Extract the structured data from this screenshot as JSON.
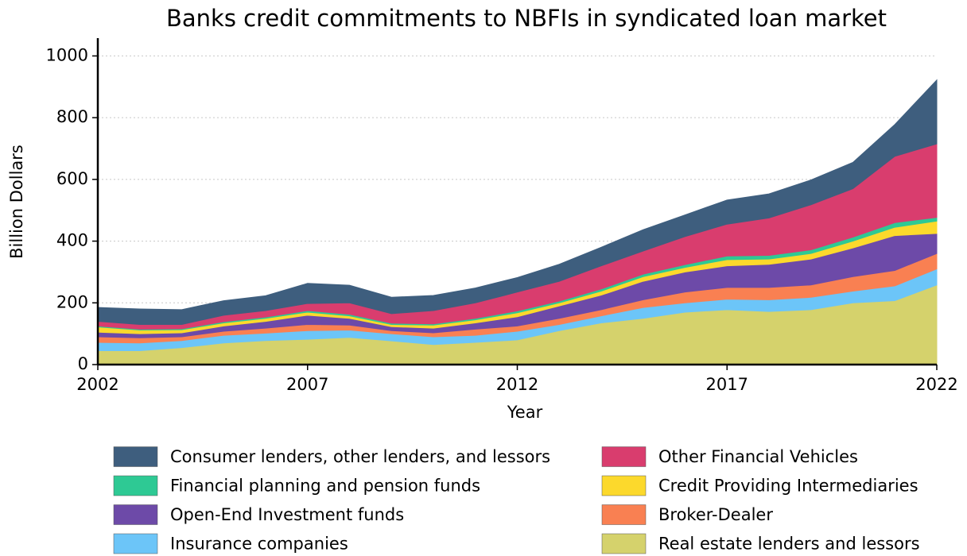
{
  "chart_data": {
    "type": "stacked_area",
    "title": "Banks credit commitments to NBFIs in syndicated loan market",
    "x_label": "Year",
    "y_label": "Billion Dollars",
    "x": [
      2002,
      2003,
      2004,
      2005,
      2006,
      2007,
      2008,
      2009,
      2010,
      2011,
      2012,
      2013,
      2014,
      2015,
      2016,
      2017,
      2018,
      2019,
      2020,
      2021,
      2022
    ],
    "xlim": [
      2002,
      2022
    ],
    "xticks": [
      2002,
      2007,
      2012,
      2017,
      2022
    ],
    "ylim": [
      0,
      1050
    ],
    "yticks": [
      0,
      200,
      400,
      600,
      800,
      1000
    ],
    "grid": true,
    "series": [
      {
        "name": "Consumer lenders, other lenders, and lessors",
        "color": "#3e5e7e",
        "values": [
          45,
          50,
          48,
          47,
          48,
          65,
          57,
          53,
          49,
          48,
          47,
          55,
          60,
          69,
          70,
          78,
          78,
          80,
          85,
          103,
          207
        ]
      },
      {
        "name": "Other Financial Vehicles",
        "color": "#d93d6e",
        "values": [
          15,
          15,
          14,
          21,
          21,
          23,
          37,
          31,
          43,
          50,
          61,
          64,
          75,
          75,
          91,
          103,
          121,
          146,
          157,
          215,
          238
        ]
      },
      {
        "name": "Financial planning and pension funds",
        "color": "#2ec994",
        "values": [
          3,
          3,
          3,
          4,
          4,
          5,
          5,
          4,
          4,
          5,
          6,
          6,
          7,
          8,
          9,
          12,
          12,
          12,
          13,
          15,
          12
        ]
      },
      {
        "name": "Credit Providing Intermediaries",
        "color": "#fcd92c",
        "values": [
          17,
          12,
          10,
          10,
          10,
          10,
          8,
          7,
          10,
          10,
          13,
          10,
          13,
          15,
          15,
          20,
          17,
          18,
          22,
          27,
          40
        ]
      },
      {
        "name": "Open-End Investment funds",
        "color": "#6d4aa8",
        "values": [
          15,
          13,
          13,
          17,
          22,
          30,
          22,
          13,
          15,
          20,
          30,
          40,
          47,
          60,
          65,
          70,
          75,
          84,
          93,
          113,
          65
        ]
      },
      {
        "name": "Broker-Dealer",
        "color": "#f98052",
        "values": [
          18,
          17,
          12,
          13,
          16,
          20,
          16,
          10,
          13,
          20,
          17,
          20,
          20,
          25,
          35,
          38,
          40,
          40,
          47,
          50,
          50
        ]
      },
      {
        "name": "Insurance companies",
        "color": "#6cc5f8",
        "values": [
          27,
          25,
          23,
          25,
          24,
          28,
          24,
          23,
          25,
          23,
          28,
          20,
          23,
          35,
          30,
          34,
          38,
          40,
          38,
          48,
          52
        ]
      },
      {
        "name": "Real estate lenders and lessors",
        "color": "#d5d26c",
        "values": [
          45,
          45,
          55,
          70,
          78,
          82,
          88,
          77,
          65,
          72,
          80,
          110,
          135,
          150,
          170,
          178,
          172,
          178,
          200,
          207,
          258
        ]
      }
    ]
  }
}
